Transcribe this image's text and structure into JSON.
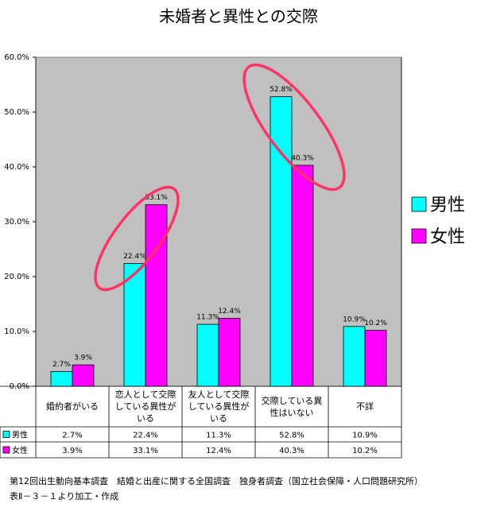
{
  "chart_data": {
    "type": "bar",
    "title": "未婚者と異性との交際",
    "categories": [
      "婚約者がいる",
      "恋人として交際している異性がいる",
      "友人として交際している異性がいる",
      "交際している異性はいない",
      "不詳"
    ],
    "series": [
      {
        "name": "男性",
        "color": "#00ffff",
        "values": [
          2.7,
          22.4,
          11.3,
          52.8,
          10.9
        ],
        "value_labels": [
          "2.7%",
          "22.4%",
          "11.3%",
          "52.8%",
          "10.9%"
        ]
      },
      {
        "name": "女性",
        "color": "#ff00ff",
        "values": [
          3.9,
          33.1,
          12.4,
          40.3,
          10.2
        ],
        "value_labels": [
          "3.9%",
          "33.1%",
          "12.4%",
          "40.3%",
          "10.2%"
        ]
      }
    ],
    "ylim": [
      0,
      60
    ],
    "yticks": [
      {
        "value": 0,
        "label": "0.0%"
      },
      {
        "value": 10,
        "label": "10.0%"
      },
      {
        "value": 20,
        "label": "20.0%"
      },
      {
        "value": 30,
        "label": "30.0%"
      },
      {
        "value": 40,
        "label": "40.0%"
      },
      {
        "value": 50,
        "label": "50.0%"
      },
      {
        "value": 60,
        "label": "60.0%"
      }
    ],
    "grid": false,
    "legend": "right",
    "data_table": true
  },
  "notes": [
    "第12回出生動向基本調査　結婚と出産に関する全国調査　独身者調査（国立社会保障・人口問題研究所）",
    "表Ⅱ－３－１より加工・作成"
  ]
}
